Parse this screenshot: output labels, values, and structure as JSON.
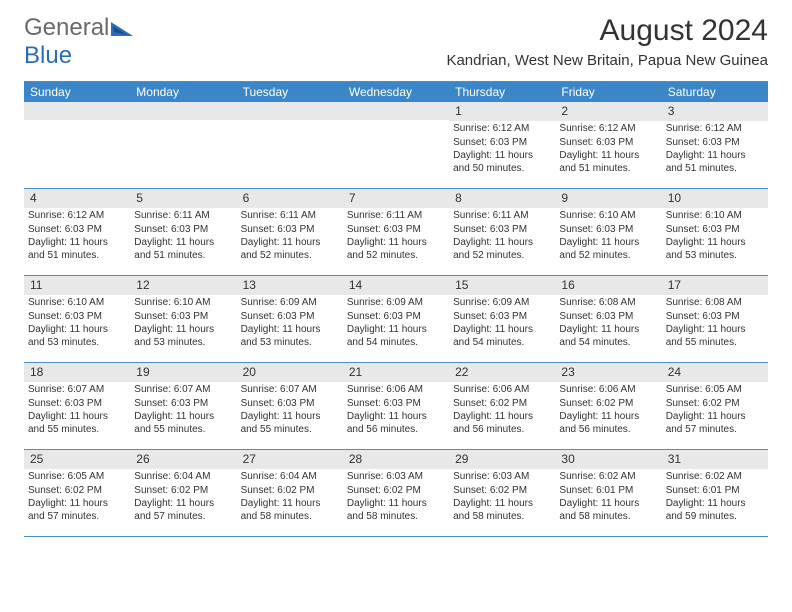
{
  "header": {
    "logo_text_1": "General",
    "logo_text_2": "Blue",
    "logo_color_gray": "#6a6a6a",
    "logo_color_blue": "#2a6db8",
    "month_title": "August 2024",
    "location": "Kandrian, West New Britain, Papua New Guinea"
  },
  "colors": {
    "header_bg": "#3b86c6",
    "border": "#4a8fc7",
    "daynum_bg": "#e8e8e8"
  },
  "days_of_week": [
    "Sunday",
    "Monday",
    "Tuesday",
    "Wednesday",
    "Thursday",
    "Friday",
    "Saturday"
  ],
  "weeks": [
    [
      {
        "empty": true
      },
      {
        "empty": true
      },
      {
        "empty": true
      },
      {
        "empty": true
      },
      {
        "num": "1",
        "sunrise": "Sunrise: 6:12 AM",
        "sunset": "Sunset: 6:03 PM",
        "daylight": "Daylight: 11 hours and 50 minutes."
      },
      {
        "num": "2",
        "sunrise": "Sunrise: 6:12 AM",
        "sunset": "Sunset: 6:03 PM",
        "daylight": "Daylight: 11 hours and 51 minutes."
      },
      {
        "num": "3",
        "sunrise": "Sunrise: 6:12 AM",
        "sunset": "Sunset: 6:03 PM",
        "daylight": "Daylight: 11 hours and 51 minutes."
      }
    ],
    [
      {
        "num": "4",
        "sunrise": "Sunrise: 6:12 AM",
        "sunset": "Sunset: 6:03 PM",
        "daylight": "Daylight: 11 hours and 51 minutes."
      },
      {
        "num": "5",
        "sunrise": "Sunrise: 6:11 AM",
        "sunset": "Sunset: 6:03 PM",
        "daylight": "Daylight: 11 hours and 51 minutes."
      },
      {
        "num": "6",
        "sunrise": "Sunrise: 6:11 AM",
        "sunset": "Sunset: 6:03 PM",
        "daylight": "Daylight: 11 hours and 52 minutes."
      },
      {
        "num": "7",
        "sunrise": "Sunrise: 6:11 AM",
        "sunset": "Sunset: 6:03 PM",
        "daylight": "Daylight: 11 hours and 52 minutes."
      },
      {
        "num": "8",
        "sunrise": "Sunrise: 6:11 AM",
        "sunset": "Sunset: 6:03 PM",
        "daylight": "Daylight: 11 hours and 52 minutes."
      },
      {
        "num": "9",
        "sunrise": "Sunrise: 6:10 AM",
        "sunset": "Sunset: 6:03 PM",
        "daylight": "Daylight: 11 hours and 52 minutes."
      },
      {
        "num": "10",
        "sunrise": "Sunrise: 6:10 AM",
        "sunset": "Sunset: 6:03 PM",
        "daylight": "Daylight: 11 hours and 53 minutes."
      }
    ],
    [
      {
        "num": "11",
        "sunrise": "Sunrise: 6:10 AM",
        "sunset": "Sunset: 6:03 PM",
        "daylight": "Daylight: 11 hours and 53 minutes."
      },
      {
        "num": "12",
        "sunrise": "Sunrise: 6:10 AM",
        "sunset": "Sunset: 6:03 PM",
        "daylight": "Daylight: 11 hours and 53 minutes."
      },
      {
        "num": "13",
        "sunrise": "Sunrise: 6:09 AM",
        "sunset": "Sunset: 6:03 PM",
        "daylight": "Daylight: 11 hours and 53 minutes."
      },
      {
        "num": "14",
        "sunrise": "Sunrise: 6:09 AM",
        "sunset": "Sunset: 6:03 PM",
        "daylight": "Daylight: 11 hours and 54 minutes."
      },
      {
        "num": "15",
        "sunrise": "Sunrise: 6:09 AM",
        "sunset": "Sunset: 6:03 PM",
        "daylight": "Daylight: 11 hours and 54 minutes."
      },
      {
        "num": "16",
        "sunrise": "Sunrise: 6:08 AM",
        "sunset": "Sunset: 6:03 PM",
        "daylight": "Daylight: 11 hours and 54 minutes."
      },
      {
        "num": "17",
        "sunrise": "Sunrise: 6:08 AM",
        "sunset": "Sunset: 6:03 PM",
        "daylight": "Daylight: 11 hours and 55 minutes."
      }
    ],
    [
      {
        "num": "18",
        "sunrise": "Sunrise: 6:07 AM",
        "sunset": "Sunset: 6:03 PM",
        "daylight": "Daylight: 11 hours and 55 minutes."
      },
      {
        "num": "19",
        "sunrise": "Sunrise: 6:07 AM",
        "sunset": "Sunset: 6:03 PM",
        "daylight": "Daylight: 11 hours and 55 minutes."
      },
      {
        "num": "20",
        "sunrise": "Sunrise: 6:07 AM",
        "sunset": "Sunset: 6:03 PM",
        "daylight": "Daylight: 11 hours and 55 minutes."
      },
      {
        "num": "21",
        "sunrise": "Sunrise: 6:06 AM",
        "sunset": "Sunset: 6:03 PM",
        "daylight": "Daylight: 11 hours and 56 minutes."
      },
      {
        "num": "22",
        "sunrise": "Sunrise: 6:06 AM",
        "sunset": "Sunset: 6:02 PM",
        "daylight": "Daylight: 11 hours and 56 minutes."
      },
      {
        "num": "23",
        "sunrise": "Sunrise: 6:06 AM",
        "sunset": "Sunset: 6:02 PM",
        "daylight": "Daylight: 11 hours and 56 minutes."
      },
      {
        "num": "24",
        "sunrise": "Sunrise: 6:05 AM",
        "sunset": "Sunset: 6:02 PM",
        "daylight": "Daylight: 11 hours and 57 minutes."
      }
    ],
    [
      {
        "num": "25",
        "sunrise": "Sunrise: 6:05 AM",
        "sunset": "Sunset: 6:02 PM",
        "daylight": "Daylight: 11 hours and 57 minutes."
      },
      {
        "num": "26",
        "sunrise": "Sunrise: 6:04 AM",
        "sunset": "Sunset: 6:02 PM",
        "daylight": "Daylight: 11 hours and 57 minutes."
      },
      {
        "num": "27",
        "sunrise": "Sunrise: 6:04 AM",
        "sunset": "Sunset: 6:02 PM",
        "daylight": "Daylight: 11 hours and 58 minutes."
      },
      {
        "num": "28",
        "sunrise": "Sunrise: 6:03 AM",
        "sunset": "Sunset: 6:02 PM",
        "daylight": "Daylight: 11 hours and 58 minutes."
      },
      {
        "num": "29",
        "sunrise": "Sunrise: 6:03 AM",
        "sunset": "Sunset: 6:02 PM",
        "daylight": "Daylight: 11 hours and 58 minutes."
      },
      {
        "num": "30",
        "sunrise": "Sunrise: 6:02 AM",
        "sunset": "Sunset: 6:01 PM",
        "daylight": "Daylight: 11 hours and 58 minutes."
      },
      {
        "num": "31",
        "sunrise": "Sunrise: 6:02 AM",
        "sunset": "Sunset: 6:01 PM",
        "daylight": "Daylight: 11 hours and 59 minutes."
      }
    ]
  ]
}
